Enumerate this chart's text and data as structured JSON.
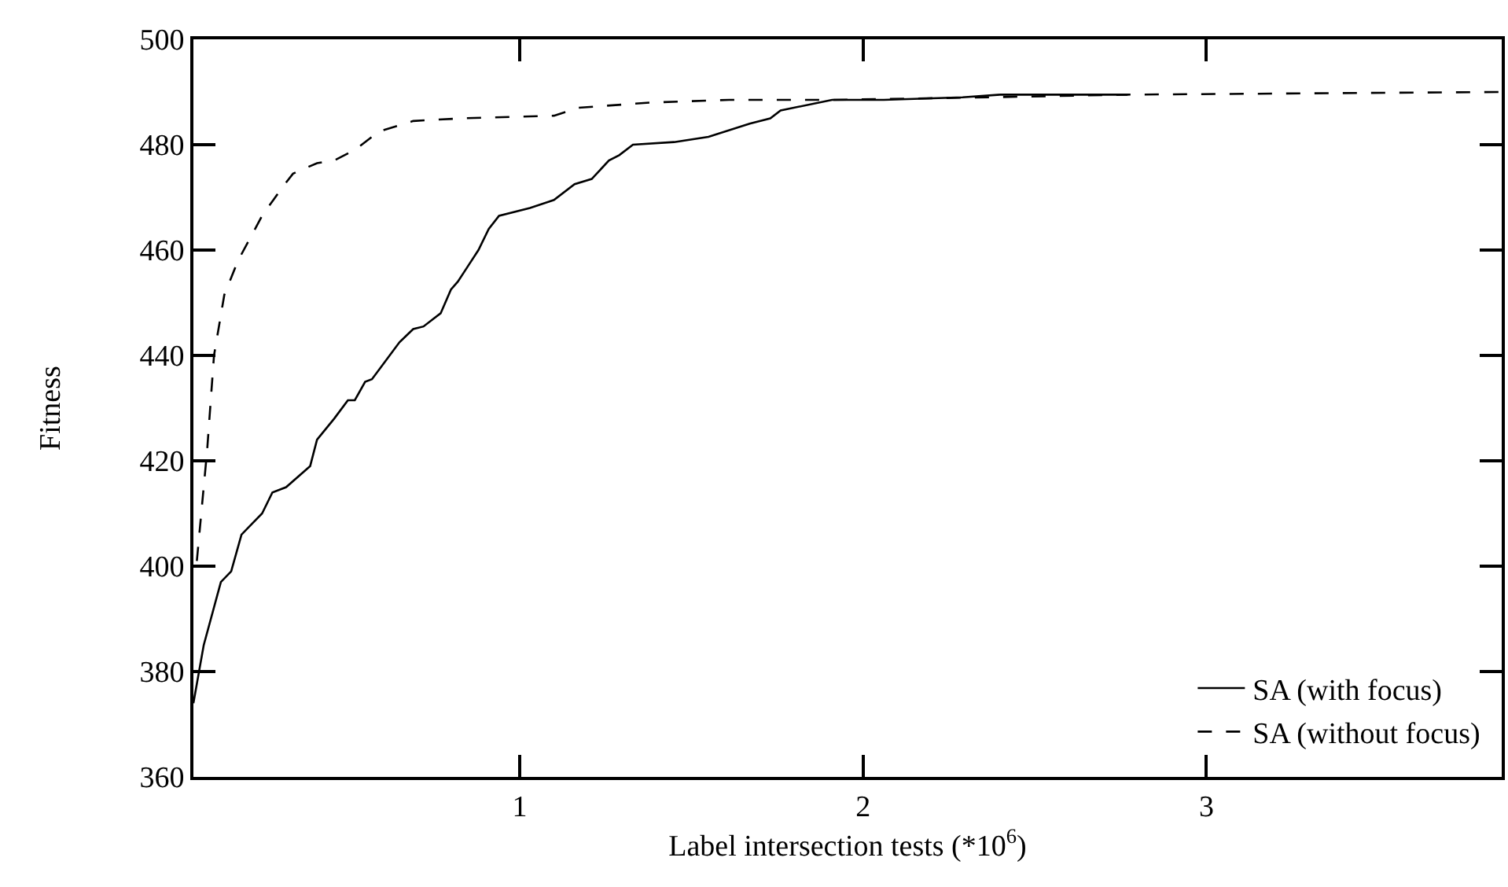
{
  "chart_data": {
    "type": "line",
    "xlabel": "Label intersection tests (*10$^{6}$)",
    "ylabel": "Fitness",
    "xlim": [
      0.05,
      3.86
    ],
    "xticks": [
      1,
      2,
      3
    ],
    "ylim": [
      360,
      500
    ],
    "yticks": [
      360,
      380,
      400,
      420,
      440,
      460,
      480,
      500
    ],
    "grid": false,
    "legend": "bottom right",
    "marker": "none",
    "series": [
      {
        "name": "SA (with focus)",
        "color": "#000000",
        "line_style": "solid",
        "x": [
          0.05,
          0.08,
          0.13,
          0.16,
          0.19,
          0.22,
          0.25,
          0.28,
          0.32,
          0.39,
          0.41,
          0.46,
          0.5,
          0.52,
          0.55,
          0.57,
          0.61,
          0.65,
          0.69,
          0.72,
          0.77,
          0.8,
          0.82,
          0.85,
          0.88,
          0.91,
          0.94,
          1.03,
          1.1,
          1.16,
          1.21,
          1.26,
          1.29,
          1.33,
          1.45,
          1.55,
          1.67,
          1.73,
          1.76,
          1.91,
          2.06,
          2.29,
          2.4,
          2.77
        ],
        "values": [
          374,
          385,
          397,
          399,
          406,
          408,
          410,
          414,
          415,
          419,
          424,
          428,
          431.5,
          431.5,
          435,
          435.5,
          439,
          442.5,
          445,
          445.5,
          448,
          452.5,
          454,
          457,
          460,
          464,
          466.5,
          468,
          469.5,
          472.5,
          473.5,
          477,
          478,
          480,
          480.5,
          481.5,
          484,
          485,
          486.5,
          488.5,
          488.5,
          489,
          489.5,
          489.5
        ]
      },
      {
        "name": "SA (without focus)",
        "color": "#000000",
        "line_style": "dashed",
        "x": [
          0.06,
          0.09,
          0.11,
          0.14,
          0.18,
          0.25,
          0.31,
          0.34,
          0.41,
          0.46,
          0.52,
          0.59,
          0.69,
          0.83,
          1.1,
          1.17,
          1.38,
          1.61,
          1.91,
          2.37,
          2.77,
          3.86
        ],
        "values": [
          401,
          422,
          440,
          451.5,
          458,
          466.5,
          472,
          474.5,
          476.5,
          477,
          479,
          482.5,
          484.5,
          485,
          485.5,
          487,
          488,
          488.5,
          488.5,
          489,
          489.5,
          490
        ]
      }
    ]
  }
}
